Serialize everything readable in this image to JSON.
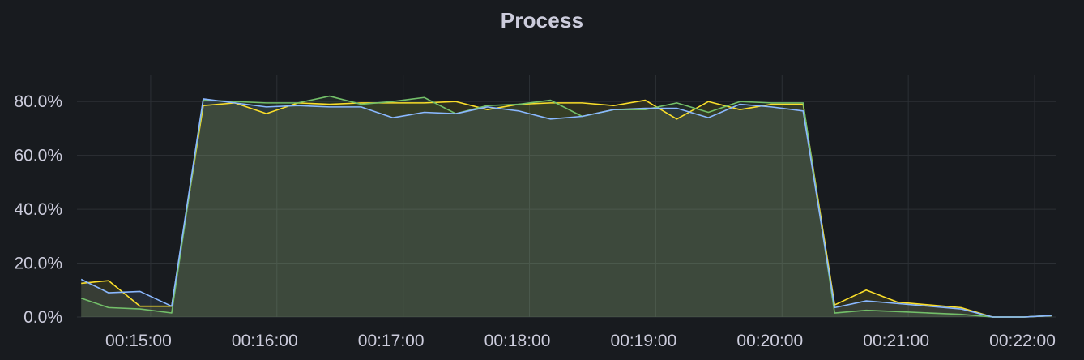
{
  "panel": {
    "title": "Process"
  },
  "chart_data": {
    "type": "line",
    "title": "Process",
    "xlabel": "",
    "ylabel": "",
    "ylim": [
      0,
      90
    ],
    "xlim": [
      "00:14:25",
      "00:22:10"
    ],
    "y_ticks": [
      0,
      20,
      40,
      60,
      80
    ],
    "y_tick_labels": [
      "0.0%",
      "20.0%",
      "40.0%",
      "60.0%",
      "80.0%"
    ],
    "x_ticks": [
      "00:15:00",
      "00:16:00",
      "00:17:00",
      "00:18:00",
      "00:19:00",
      "00:20:00",
      "00:21:00",
      "00:22:00"
    ],
    "grid": true,
    "area_fill": true,
    "legend": "none",
    "x": [
      "00:14:27",
      "00:14:40",
      "00:14:55",
      "00:15:10",
      "00:15:25",
      "00:15:40",
      "00:15:55",
      "00:16:10",
      "00:16:25",
      "00:16:40",
      "00:16:55",
      "00:17:10",
      "00:17:25",
      "00:17:40",
      "00:17:55",
      "00:18:10",
      "00:18:25",
      "00:18:40",
      "00:18:55",
      "00:19:10",
      "00:19:25",
      "00:19:40",
      "00:19:55",
      "00:20:10",
      "00:20:25",
      "00:20:40",
      "00:20:55",
      "00:21:10",
      "00:21:25",
      "00:21:40",
      "00:21:55",
      "00:22:08"
    ],
    "series": [
      {
        "color": "#fade2a",
        "values": [
          12.5,
          13.5,
          4.0,
          4.0,
          78.5,
          79.5,
          75.5,
          79.5,
          79.0,
          79.5,
          79.5,
          79.5,
          80.0,
          77.0,
          79.0,
          79.5,
          79.5,
          78.5,
          80.5,
          73.5,
          80.0,
          77.0,
          79.0,
          79.0,
          4.5,
          10.0,
          5.5,
          4.5,
          3.5,
          0.0,
          0.0,
          0.5
        ]
      },
      {
        "color": "#73bf69",
        "values": [
          7.0,
          3.5,
          3.0,
          1.5,
          80.5,
          80.0,
          79.5,
          79.5,
          82.0,
          79.0,
          80.0,
          81.5,
          75.5,
          78.5,
          79.0,
          80.5,
          74.5,
          77.0,
          77.0,
          79.5,
          76.0,
          80.0,
          79.5,
          79.5,
          1.5,
          2.5,
          2.0,
          1.5,
          1.0,
          0.0,
          0.0,
          0.5
        ]
      },
      {
        "color": "#8ab8ff",
        "values": [
          14.0,
          9.0,
          9.5,
          4.0,
          81.0,
          79.5,
          78.0,
          78.5,
          78.0,
          78.0,
          74.0,
          76.0,
          75.5,
          78.0,
          76.5,
          73.5,
          74.5,
          77.0,
          77.5,
          77.5,
          74.0,
          79.0,
          78.0,
          76.5,
          3.5,
          6.0,
          5.0,
          4.0,
          3.0,
          0.0,
          0.0,
          0.5
        ]
      }
    ]
  }
}
